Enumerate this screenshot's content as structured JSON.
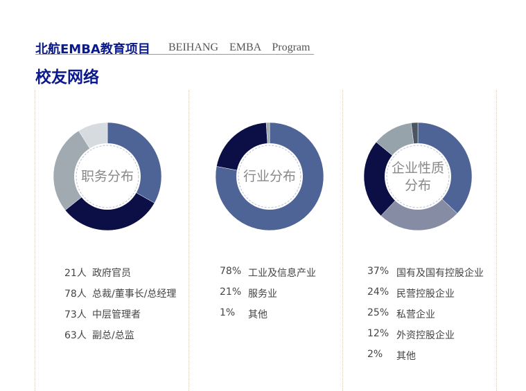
{
  "header": {
    "title": "北航EMBA教育项目",
    "subtitle": "BEIHANG  EMBA  Program",
    "section": "校友网络"
  },
  "chart_data": [
    {
      "type": "pie",
      "title": "职务分布",
      "categories": [
        "总裁/董事长/总经理",
        "中层管理者",
        "副总/总监",
        "政府官员"
      ],
      "values": [
        78,
        73,
        63,
        21
      ],
      "legend": [
        [
          "21人",
          "政府官员"
        ],
        [
          "78人",
          "总裁/董事长/总经理"
        ],
        [
          "73人",
          "中层管理者"
        ],
        [
          "63人",
          "副总/总监"
        ]
      ],
      "colors": [
        "#4f6496",
        "#0c0f45",
        "#a1a9b1",
        "#d6dbe0"
      ]
    },
    {
      "type": "pie",
      "title": "行业分布",
      "categories": [
        "工业及信息产业",
        "服务业",
        "其他"
      ],
      "values": [
        78,
        21,
        1
      ],
      "legend": [
        [
          "78%",
          "工业及信息产业"
        ],
        [
          "21%",
          "服务业"
        ],
        [
          "1%",
          "其他"
        ]
      ],
      "colors": [
        "#4f6496",
        "#0c0f45",
        "#a1a9b1"
      ]
    },
    {
      "type": "pie",
      "title": "企业性质分布",
      "title_lines": [
        "企业性质",
        "分布"
      ],
      "categories": [
        "国有及国有控股企业",
        "私营企业",
        "民营控股企业",
        "外资控股企业",
        "其他"
      ],
      "values": [
        37,
        25,
        24,
        12,
        2
      ],
      "legend": [
        [
          "37%",
          "国有及国有控股企业"
        ],
        [
          "24%",
          "民营控股企业"
        ],
        [
          "25%",
          "私营企业"
        ],
        [
          "12%",
          "外资控股企业"
        ],
        [
          "2%",
          "其他"
        ]
      ],
      "colors": [
        "#4f6496",
        "#868ca3",
        "#0c0f45",
        "#97a3ab",
        "#4a5662"
      ]
    }
  ]
}
